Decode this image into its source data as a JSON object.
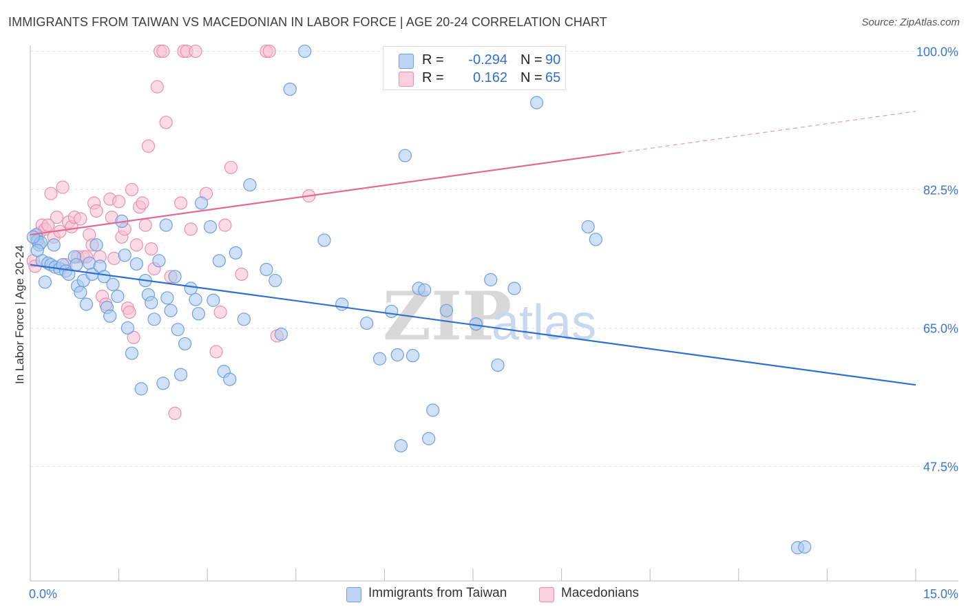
{
  "title": "IMMIGRANTS FROM TAIWAN VS MACEDONIAN IN LABOR FORCE | AGE 20-24 CORRELATION CHART",
  "source": "Source: ZipAtlas.com",
  "watermark": {
    "zip": "ZIP",
    "atlas": "atlas"
  },
  "legend": {
    "rows": [
      {
        "r_label": "R =",
        "r_value": "-0.294",
        "n_label": "N =",
        "n_value": "90"
      },
      {
        "r_label": "R =",
        "r_value": "0.162",
        "n_label": "N =",
        "n_value": "65"
      }
    ]
  },
  "colors": {
    "taiwan_fill": "#a9c8f0",
    "taiwan_stroke": "#6f9fdc",
    "taiwan_line": "#2f6fd0",
    "maced_fill": "#f7bfd1",
    "maced_stroke": "#ea8fae",
    "maced_line": "#e06a93",
    "grid": "#e3e3e3",
    "tick_label": "#3a76cf"
  },
  "chart_data": {
    "type": "scatter",
    "xlabel": "",
    "ylabel": "In Labor Force | Age 20-24",
    "xlim": [
      0,
      15
    ],
    "ylim": [
      33,
      103
    ],
    "x_tick_labels": [
      {
        "value": 0,
        "label": "0.0%"
      },
      {
        "value": 15,
        "label": "15.0%"
      }
    ],
    "y_ticks": [
      {
        "value": 47.5,
        "label": "47.5%"
      },
      {
        "value": 65.0,
        "label": "65.0%"
      },
      {
        "value": 82.5,
        "label": "82.5%"
      },
      {
        "value": 100.0,
        "label": "100.0%"
      }
    ],
    "grid": true,
    "legend_position": "top-center",
    "series": [
      {
        "name": "Immigrants from Taiwan",
        "color": "#a9c8f0",
        "trend": {
          "x": [
            0,
            15
          ],
          "y": [
            73.0,
            57.8
          ]
        },
        "points": [
          [
            0.1,
            76.8
          ],
          [
            0.12,
            76.0
          ],
          [
            0.15,
            75.5
          ],
          [
            0.18,
            75.8
          ],
          [
            0.2,
            73.5
          ],
          [
            0.25,
            70.8
          ],
          [
            0.3,
            73.2
          ],
          [
            0.35,
            73.0
          ],
          [
            0.4,
            75.5
          ],
          [
            0.42,
            72.7
          ],
          [
            0.5,
            72.5
          ],
          [
            0.55,
            73.0
          ],
          [
            0.6,
            72.2
          ],
          [
            0.65,
            71.8
          ],
          [
            0.75,
            74.0
          ],
          [
            0.78,
            73.0
          ],
          [
            0.8,
            70.3
          ],
          [
            0.85,
            69.5
          ],
          [
            0.9,
            71.0
          ],
          [
            0.95,
            68.0
          ],
          [
            1.0,
            73.2
          ],
          [
            1.05,
            71.8
          ],
          [
            1.12,
            75.5
          ],
          [
            1.18,
            72.8
          ],
          [
            1.25,
            71.5
          ],
          [
            1.3,
            67.6
          ],
          [
            1.35,
            66.5
          ],
          [
            1.4,
            70.5
          ],
          [
            1.48,
            69.0
          ],
          [
            1.55,
            78.5
          ],
          [
            1.6,
            74.2
          ],
          [
            1.65,
            65.0
          ],
          [
            1.72,
            61.8
          ],
          [
            1.8,
            73.1
          ],
          [
            1.88,
            57.3
          ],
          [
            1.95,
            71.0
          ],
          [
            2.0,
            69.2
          ],
          [
            2.05,
            68.2
          ],
          [
            2.1,
            66.1
          ],
          [
            2.18,
            73.5
          ],
          [
            2.25,
            58.0
          ],
          [
            2.3,
            78.0
          ],
          [
            2.32,
            68.8
          ],
          [
            2.38,
            67.2
          ],
          [
            2.45,
            71.5
          ],
          [
            2.5,
            64.8
          ],
          [
            2.55,
            59.1
          ],
          [
            2.62,
            63.0
          ],
          [
            2.72,
            70.0
          ],
          [
            2.8,
            68.6
          ],
          [
            2.85,
            66.8
          ],
          [
            2.9,
            80.8
          ],
          [
            3.05,
            77.8
          ],
          [
            3.1,
            68.5
          ],
          [
            3.2,
            73.5
          ],
          [
            3.28,
            59.5
          ],
          [
            3.38,
            58.5
          ],
          [
            3.48,
            74.5
          ],
          [
            3.62,
            66.1
          ],
          [
            3.72,
            83.1
          ],
          [
            4.0,
            72.4
          ],
          [
            4.15,
            71.0
          ],
          [
            4.25,
            64.2
          ],
          [
            4.4,
            95.2
          ],
          [
            4.65,
            100.0
          ],
          [
            4.98,
            76.1
          ],
          [
            5.28,
            68.0
          ],
          [
            5.7,
            65.6
          ],
          [
            5.92,
            61.1
          ],
          [
            6.12,
            67.1
          ],
          [
            6.22,
            61.6
          ],
          [
            6.28,
            50.1
          ],
          [
            6.35,
            86.8
          ],
          [
            6.48,
            61.5
          ],
          [
            6.58,
            70.0
          ],
          [
            6.68,
            69.8
          ],
          [
            6.75,
            51.0
          ],
          [
            6.82,
            54.6
          ],
          [
            7.05,
            67.2
          ],
          [
            7.55,
            65.5
          ],
          [
            7.8,
            71.1
          ],
          [
            7.92,
            60.3
          ],
          [
            8.2,
            70.0
          ],
          [
            8.58,
            93.5
          ],
          [
            9.45,
            77.8
          ],
          [
            9.58,
            76.2
          ],
          [
            13.0,
            37.2
          ],
          [
            13.12,
            37.3
          ],
          [
            0.05,
            76.5
          ],
          [
            0.12,
            74.8
          ]
        ]
      },
      {
        "name": "Macedonians",
        "color": "#f7bfd1",
        "trend": {
          "x": [
            0,
            10
          ],
          "y": [
            76.8,
            87.2
          ]
        },
        "trend_extension": {
          "x": [
            10,
            15
          ],
          "y": [
            87.2,
            92.4
          ]
        },
        "points": [
          [
            0.05,
            73.5
          ],
          [
            0.08,
            72.8
          ],
          [
            0.12,
            76.2
          ],
          [
            0.15,
            77.0
          ],
          [
            0.2,
            78.0
          ],
          [
            0.25,
            77.5
          ],
          [
            0.3,
            78.0
          ],
          [
            0.35,
            82.0
          ],
          [
            0.4,
            76.5
          ],
          [
            0.45,
            79.0
          ],
          [
            0.5,
            77.2
          ],
          [
            0.55,
            82.8
          ],
          [
            0.6,
            73.0
          ],
          [
            0.65,
            78.4
          ],
          [
            0.7,
            77.8
          ],
          [
            0.75,
            79.0
          ],
          [
            0.8,
            74.0
          ],
          [
            0.85,
            78.8
          ],
          [
            0.9,
            74.0
          ],
          [
            0.95,
            74.0
          ],
          [
            1.0,
            76.8
          ],
          [
            1.05,
            75.5
          ],
          [
            1.08,
            80.8
          ],
          [
            1.12,
            79.8
          ],
          [
            1.18,
            74.0
          ],
          [
            1.22,
            69.0
          ],
          [
            1.28,
            68.0
          ],
          [
            1.35,
            81.3
          ],
          [
            1.38,
            79.0
          ],
          [
            1.42,
            73.8
          ],
          [
            1.5,
            81.0
          ],
          [
            1.55,
            76.5
          ],
          [
            1.6,
            77.5
          ],
          [
            1.65,
            67.5
          ],
          [
            1.68,
            67.0
          ],
          [
            1.72,
            82.5
          ],
          [
            1.75,
            63.8
          ],
          [
            1.8,
            75.5
          ],
          [
            1.85,
            80.3
          ],
          [
            1.9,
            80.8
          ],
          [
            1.95,
            78.0
          ],
          [
            2.0,
            88.0
          ],
          [
            2.05,
            75.0
          ],
          [
            2.1,
            72.5
          ],
          [
            2.15,
            95.5
          ],
          [
            2.2,
            100.0
          ],
          [
            2.25,
            100.0
          ],
          [
            2.3,
            91.0
          ],
          [
            2.38,
            71.5
          ],
          [
            2.45,
            54.2
          ],
          [
            2.55,
            80.8
          ],
          [
            2.6,
            100.0
          ],
          [
            2.65,
            100.0
          ],
          [
            2.72,
            77.5
          ],
          [
            2.8,
            100.0
          ],
          [
            2.98,
            82.0
          ],
          [
            3.15,
            62.0
          ],
          [
            3.22,
            67.0
          ],
          [
            3.3,
            78.0
          ],
          [
            3.4,
            85.3
          ],
          [
            3.58,
            71.8
          ],
          [
            4.0,
            100.0
          ],
          [
            4.05,
            100.0
          ],
          [
            4.18,
            64.0
          ],
          [
            4.72,
            81.7
          ]
        ]
      }
    ]
  },
  "bottom_legend": {
    "items": [
      {
        "label": "Immigrants from Taiwan"
      },
      {
        "label": "Macedonians"
      }
    ]
  }
}
